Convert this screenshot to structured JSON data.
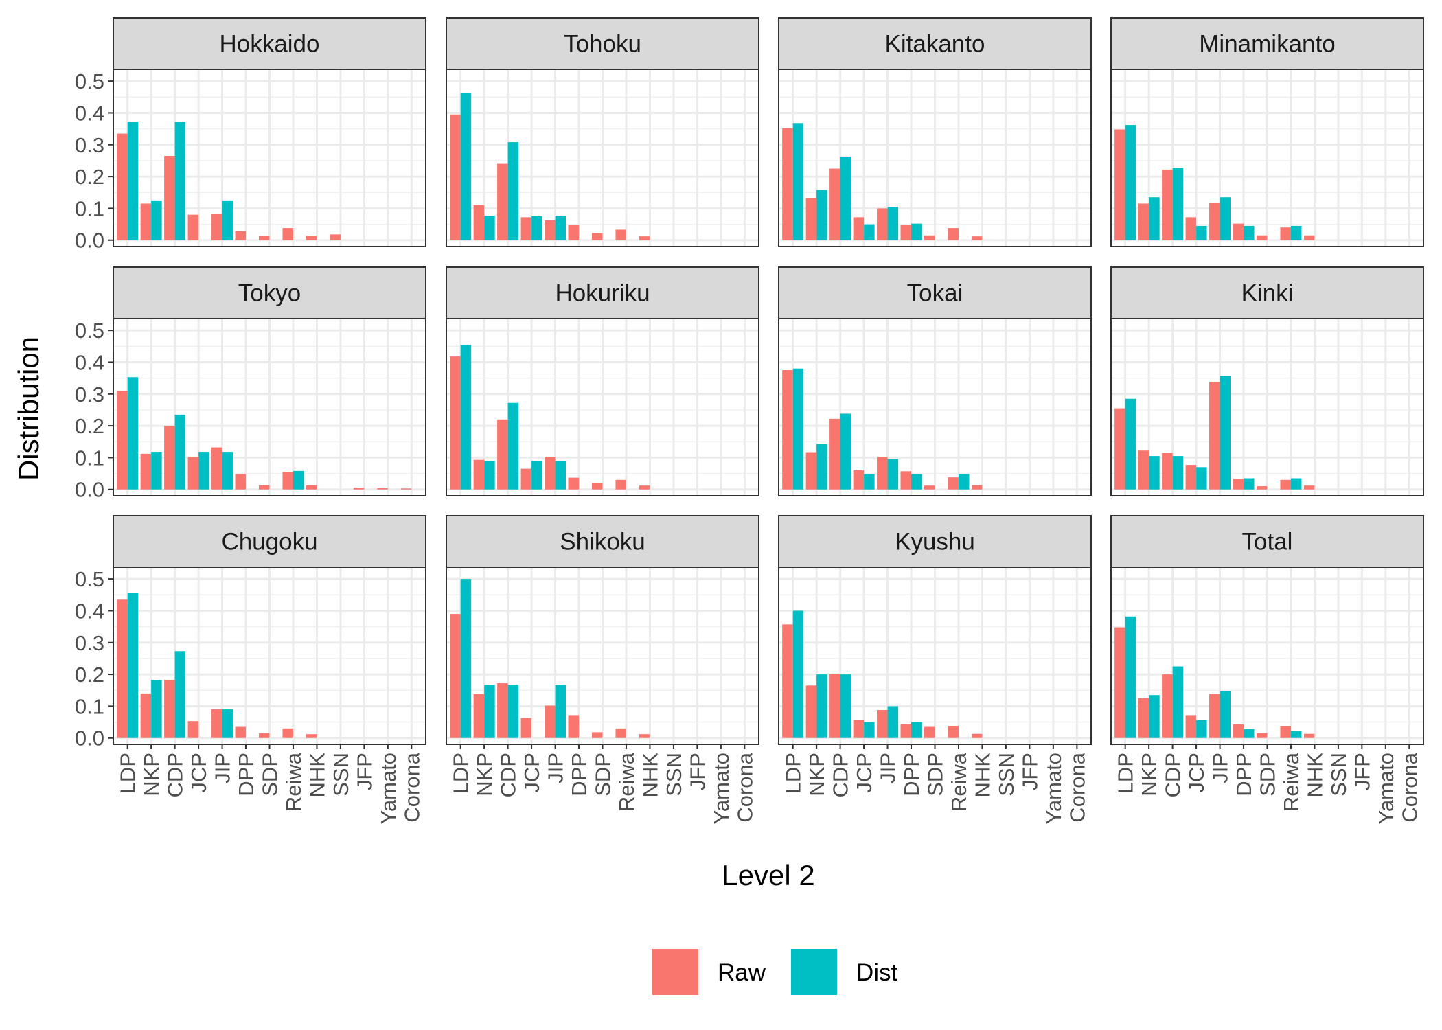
{
  "chart_data": {
    "type": "bar",
    "xlabel": "Level 2",
    "ylabel": "Distribution",
    "ylim": [
      0,
      0.5
    ],
    "y_ticks": [
      "0.0",
      "0.1",
      "0.2",
      "0.3",
      "0.4",
      "0.5"
    ],
    "grid": true,
    "legend_position": "bottom",
    "categories": [
      "LDP",
      "NKP",
      "CDP",
      "JCP",
      "JIP",
      "DPP",
      "SDP",
      "Reiwa",
      "NHK",
      "SSN",
      "JFP",
      "Yamato",
      "Corona"
    ],
    "legend": [
      {
        "name": "Raw",
        "color": "#F8766D"
      },
      {
        "name": "Dist",
        "color": "#00BFC4"
      }
    ],
    "panels": [
      {
        "title": "Hokkaido",
        "raw": [
          0.335,
          0.115,
          0.265,
          0.08,
          0.082,
          0.028,
          0.013,
          0.038,
          0.014,
          0.018,
          0,
          0,
          0
        ],
        "dist": [
          0.372,
          0.125,
          0.372,
          0,
          0.125,
          0,
          0,
          0,
          0,
          0,
          0,
          0,
          0
        ]
      },
      {
        "title": "Tohoku",
        "raw": [
          0.395,
          0.11,
          0.24,
          0.072,
          0.062,
          0.047,
          0.022,
          0.033,
          0.012,
          0,
          0,
          0,
          0
        ],
        "dist": [
          0.462,
          0.077,
          0.308,
          0.075,
          0.077,
          0,
          0,
          0,
          0,
          0,
          0,
          0,
          0
        ]
      },
      {
        "title": "Kitakanto",
        "raw": [
          0.352,
          0.133,
          0.225,
          0.072,
          0.1,
          0.047,
          0.015,
          0.038,
          0.012,
          0,
          0,
          0,
          0
        ],
        "dist": [
          0.368,
          0.158,
          0.263,
          0.05,
          0.105,
          0.052,
          0,
          0,
          0,
          0,
          0,
          0,
          0
        ]
      },
      {
        "title": "Minamikanto",
        "raw": [
          0.348,
          0.115,
          0.222,
          0.072,
          0.117,
          0.052,
          0.015,
          0.04,
          0.015,
          0,
          0,
          0,
          0
        ],
        "dist": [
          0.362,
          0.135,
          0.227,
          0.045,
          0.135,
          0.045,
          0,
          0.045,
          0,
          0,
          0,
          0,
          0
        ]
      },
      {
        "title": "Tokyo",
        "raw": [
          0.31,
          0.112,
          0.2,
          0.103,
          0.132,
          0.048,
          0.013,
          0.055,
          0.013,
          0,
          0.005,
          0.004,
          0.003
        ],
        "dist": [
          0.353,
          0.118,
          0.235,
          0.118,
          0.118,
          0,
          0,
          0.058,
          0,
          0,
          0,
          0,
          0
        ]
      },
      {
        "title": "Hokuriku",
        "raw": [
          0.418,
          0.093,
          0.22,
          0.065,
          0.103,
          0.037,
          0.02,
          0.03,
          0.012,
          0,
          0,
          0,
          0
        ],
        "dist": [
          0.455,
          0.09,
          0.272,
          0.09,
          0.09,
          0,
          0,
          0,
          0,
          0,
          0,
          0,
          0
        ]
      },
      {
        "title": "Tokai",
        "raw": [
          0.375,
          0.117,
          0.222,
          0.06,
          0.103,
          0.057,
          0.012,
          0.038,
          0.013,
          0,
          0,
          0,
          0
        ],
        "dist": [
          0.38,
          0.142,
          0.238,
          0.048,
          0.095,
          0.048,
          0,
          0.048,
          0,
          0,
          0,
          0,
          0
        ]
      },
      {
        "title": "Kinki",
        "raw": [
          0.255,
          0.122,
          0.115,
          0.077,
          0.338,
          0.033,
          0.01,
          0.03,
          0.012,
          0,
          0,
          0,
          0
        ],
        "dist": [
          0.285,
          0.105,
          0.105,
          0.07,
          0.357,
          0.035,
          0,
          0.035,
          0,
          0,
          0,
          0,
          0
        ]
      },
      {
        "title": "Chugoku",
        "raw": [
          0.435,
          0.14,
          0.183,
          0.053,
          0.09,
          0.035,
          0.015,
          0.03,
          0.012,
          0,
          0,
          0,
          0
        ],
        "dist": [
          0.455,
          0.182,
          0.273,
          0,
          0.09,
          0,
          0,
          0,
          0,
          0,
          0,
          0,
          0
        ]
      },
      {
        "title": "Shikoku",
        "raw": [
          0.39,
          0.138,
          0.172,
          0.063,
          0.102,
          0.072,
          0.018,
          0.03,
          0.012,
          0,
          0,
          0,
          0
        ],
        "dist": [
          0.5,
          0.167,
          0.167,
          0,
          0.167,
          0,
          0,
          0,
          0,
          0,
          0,
          0,
          0
        ]
      },
      {
        "title": "Kyushu",
        "raw": [
          0.357,
          0.165,
          0.202,
          0.057,
          0.088,
          0.043,
          0.035,
          0.038,
          0.013,
          0,
          0,
          0,
          0
        ],
        "dist": [
          0.4,
          0.2,
          0.2,
          0.05,
          0.1,
          0.05,
          0,
          0,
          0,
          0,
          0,
          0,
          0
        ]
      },
      {
        "title": "Total",
        "raw": [
          0.348,
          0.125,
          0.2,
          0.072,
          0.138,
          0.043,
          0.015,
          0.037,
          0.013,
          0,
          0,
          0,
          0
        ],
        "dist": [
          0.382,
          0.135,
          0.225,
          0.056,
          0.148,
          0.028,
          0,
          0.022,
          0,
          0,
          0,
          0,
          0
        ]
      }
    ]
  }
}
